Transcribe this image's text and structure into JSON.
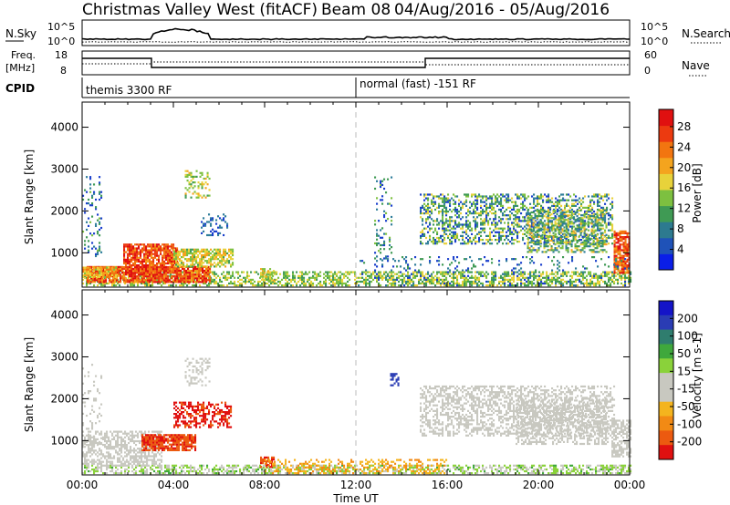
{
  "header": {
    "title": "Christmas Valley West (fitACF)",
    "beam": "Beam 08",
    "dates": "04/Aug/2016 - 05/Aug/2016"
  },
  "status_panels": {
    "nsky": {
      "label": "N.Sky",
      "left_ticks": [
        "10^5",
        "10^0"
      ]
    },
    "nsearch": {
      "label": "N.Search",
      "right_ticks": [
        "10^5",
        "10^0"
      ]
    },
    "freq": {
      "label_line1": "Freq.",
      "label_line2": "[MHz]",
      "left_ticks": [
        "18",
        "8"
      ]
    },
    "nave": {
      "label": "Nave",
      "right_ticks": [
        "60",
        "0"
      ]
    },
    "cpid": {
      "label": "CPID",
      "modes": [
        {
          "name": "themis 3300 RF"
        },
        {
          "name": "normal (fast) -151 RF"
        }
      ]
    }
  },
  "chart_data": [
    {
      "type": "heatmap",
      "quantity": "power",
      "ylabel": "Slant Range [km]",
      "xlabel": "",
      "ylim": [
        180,
        4600
      ],
      "yticks": [
        1000,
        2000,
        3000,
        4000
      ],
      "colorbar": {
        "label": "Power [dB]",
        "ticks": [
          4,
          8,
          12,
          16,
          20,
          24,
          28
        ],
        "colors": [
          "#0a1ee8",
          "#1f52b8",
          "#2d7a8f",
          "#3f9a54",
          "#7dc040",
          "#e8d23a",
          "#f4a41e",
          "#f27510",
          "#ec3a10",
          "#e01010"
        ]
      },
      "cell_colors": [
        "#1a3fcc",
        "#2e7d9a",
        "#3f9a54",
        "#7dc040",
        "#e8d23a",
        "#f4a41e",
        "#f27510",
        "#ec3a10",
        "#e01010"
      ],
      "regions": [
        {
          "t0": 0.0,
          "t1": 24.0,
          "r0": 200,
          "r1": 520,
          "density": 0.55,
          "c": [
            0.25,
            0.55
          ]
        },
        {
          "t0": 0.2,
          "t1": 5.6,
          "r0": 280,
          "r1": 650,
          "density": 0.85,
          "c": [
            0.6,
            1.0
          ]
        },
        {
          "t0": 1.8,
          "t1": 4.2,
          "r0": 500,
          "r1": 1200,
          "density": 0.8,
          "c": [
            0.65,
            1.0
          ]
        },
        {
          "t0": 4.0,
          "t1": 6.6,
          "r0": 650,
          "r1": 1100,
          "density": 0.7,
          "c": [
            0.3,
            0.65
          ]
        },
        {
          "t0": 5.2,
          "t1": 6.4,
          "r0": 1400,
          "r1": 1900,
          "density": 0.3,
          "c": [
            0.0,
            0.2
          ]
        },
        {
          "t0": 4.5,
          "t1": 5.6,
          "r0": 2300,
          "r1": 2950,
          "density": 0.35,
          "c": [
            0.3,
            0.6
          ]
        },
        {
          "t0": 0.0,
          "t1": 0.8,
          "r0": 900,
          "r1": 2800,
          "density": 0.15,
          "c": [
            0.0,
            0.35
          ]
        },
        {
          "t0": 0.0,
          "t1": 1.5,
          "r0": 400,
          "r1": 650,
          "density": 0.8,
          "c": [
            0.4,
            0.75
          ]
        },
        {
          "t0": 7.8,
          "t1": 8.4,
          "r0": 320,
          "r1": 620,
          "density": 0.6,
          "c": [
            0.35,
            0.6
          ]
        },
        {
          "t0": 12.8,
          "t1": 13.6,
          "r0": 800,
          "r1": 2800,
          "density": 0.15,
          "c": [
            0.0,
            0.4
          ]
        },
        {
          "t0": 14.8,
          "t1": 23.2,
          "r0": 1200,
          "r1": 2400,
          "density": 0.45,
          "c": [
            0.0,
            0.55
          ]
        },
        {
          "t0": 19.5,
          "t1": 23.0,
          "r0": 1000,
          "r1": 2000,
          "density": 0.5,
          "c": [
            0.1,
            0.6
          ]
        },
        {
          "t0": 23.3,
          "t1": 24.0,
          "r0": 500,
          "r1": 1500,
          "density": 0.8,
          "c": [
            0.6,
            1.0
          ]
        },
        {
          "t0": 12.0,
          "t1": 24.0,
          "r0": 200,
          "r1": 900,
          "density": 0.12,
          "c": [
            0.0,
            0.3
          ]
        }
      ]
    },
    {
      "type": "heatmap",
      "quantity": "velocity",
      "ylabel": "Slant Range [km]",
      "xlabel": "Time UT",
      "xticks": [
        "00:00",
        "04:00",
        "08:00",
        "12:00",
        "16:00",
        "20:00",
        "00:00"
      ],
      "ylim": [
        180,
        4600
      ],
      "yticks": [
        1000,
        2000,
        3000,
        4000
      ],
      "colorbar": {
        "label": "Velocity [m s-1]",
        "ticks": [
          "200",
          "100",
          "50",
          "15",
          "-15",
          "-50",
          "-100",
          "-200"
        ],
        "colors": [
          "#1414c8",
          "#2a3cb4",
          "#2f7d6e",
          "#3fa83c",
          "#8ad23a",
          "#c8c8c0",
          "#c8c8c0",
          "#f4b41e",
          "#f28a14",
          "#ec5a10",
          "#e01010"
        ]
      },
      "cell_colors": [
        "#e01010",
        "#ec5a10",
        "#f28a14",
        "#f4b41e",
        "#c8c8c0",
        "#c8c8c0",
        "#8ad23a",
        "#3fa83c",
        "#2f7d6e",
        "#2a3cb4"
      ],
      "regions": [
        {
          "t0": 0.0,
          "t1": 24.0,
          "r0": 200,
          "r1": 420,
          "density": 0.55,
          "c": [
            0.5,
            0.72
          ]
        },
        {
          "t0": 0.0,
          "t1": 3.5,
          "r0": 380,
          "r1": 1200,
          "density": 0.55,
          "c": [
            0.42,
            0.55
          ]
        },
        {
          "t0": 2.6,
          "t1": 5.0,
          "r0": 750,
          "r1": 1150,
          "density": 0.85,
          "c": [
            0.05,
            0.2
          ]
        },
        {
          "t0": 4.0,
          "t1": 6.5,
          "r0": 1300,
          "r1": 1900,
          "density": 0.5,
          "c": [
            0.0,
            0.15
          ]
        },
        {
          "t0": 4.5,
          "t1": 5.6,
          "r0": 2300,
          "r1": 2950,
          "density": 0.35,
          "c": [
            0.42,
            0.6
          ]
        },
        {
          "t0": 0.0,
          "t1": 0.8,
          "r0": 900,
          "r1": 2800,
          "density": 0.12,
          "c": [
            0.42,
            0.55
          ]
        },
        {
          "t0": 7.8,
          "t1": 8.4,
          "r0": 350,
          "r1": 620,
          "density": 0.7,
          "c": [
            0.05,
            0.2
          ]
        },
        {
          "t0": 8.0,
          "t1": 16.0,
          "r0": 200,
          "r1": 520,
          "density": 0.3,
          "c": [
            0.25,
            0.38
          ]
        },
        {
          "t0": 13.5,
          "t1": 13.9,
          "r0": 2300,
          "r1": 2600,
          "density": 0.5,
          "c": [
            0.9,
            1.0
          ]
        },
        {
          "t0": 14.8,
          "t1": 23.3,
          "r0": 1100,
          "r1": 2300,
          "density": 0.45,
          "c": [
            0.42,
            0.58
          ]
        },
        {
          "t0": 19.0,
          "t1": 23.0,
          "r0": 900,
          "r1": 2000,
          "density": 0.45,
          "c": [
            0.42,
            0.6
          ]
        },
        {
          "t0": 23.2,
          "t1": 24.0,
          "r0": 600,
          "r1": 1500,
          "density": 0.6,
          "c": [
            0.42,
            0.55
          ]
        }
      ]
    }
  ]
}
